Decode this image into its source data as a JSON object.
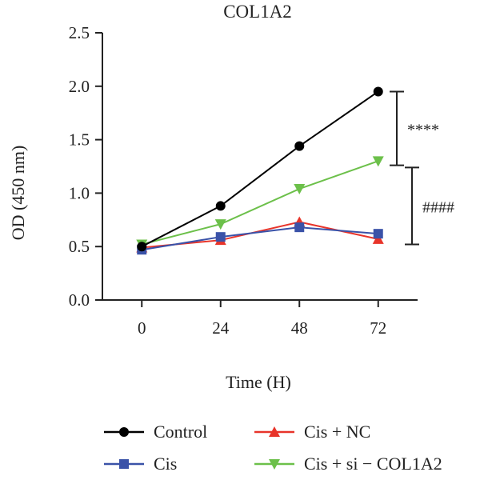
{
  "chart_data": {
    "type": "line",
    "title": "COL1A2",
    "xlabel": "Time (H)",
    "ylabel": "OD (450 nm)",
    "x": [
      0,
      24,
      48,
      72
    ],
    "xlim": [
      -12,
      84
    ],
    "ylim": [
      0,
      2.5
    ],
    "yticks": [
      "0.0",
      "0.5",
      "1.0",
      "1.5",
      "2.0",
      "2.5"
    ],
    "xticks": [
      "0",
      "24",
      "48",
      "72"
    ],
    "grid": false,
    "legend_position": "bottom",
    "series": [
      {
        "name": "Control",
        "values": [
          0.5,
          0.88,
          1.44,
          1.95
        ],
        "color": "#000000",
        "marker": "circle"
      },
      {
        "name": "Cis",
        "values": [
          0.47,
          0.59,
          0.68,
          0.62
        ],
        "color": "#3a52a8",
        "marker": "square"
      },
      {
        "name": "Cis + NC",
        "values": [
          0.49,
          0.56,
          0.73,
          0.57
        ],
        "color": "#e8342a",
        "marker": "triangle-up"
      },
      {
        "name": "Cis + si − COL1A2",
        "values": [
          0.52,
          0.71,
          1.04,
          1.3
        ],
        "color": "#6cc04a",
        "marker": "triangle-down"
      }
    ],
    "annotations": [
      {
        "label": "****",
        "from": 1.95,
        "to": 1.26
      },
      {
        "label": "####",
        "from": 1.24,
        "to": 0.52
      }
    ]
  }
}
